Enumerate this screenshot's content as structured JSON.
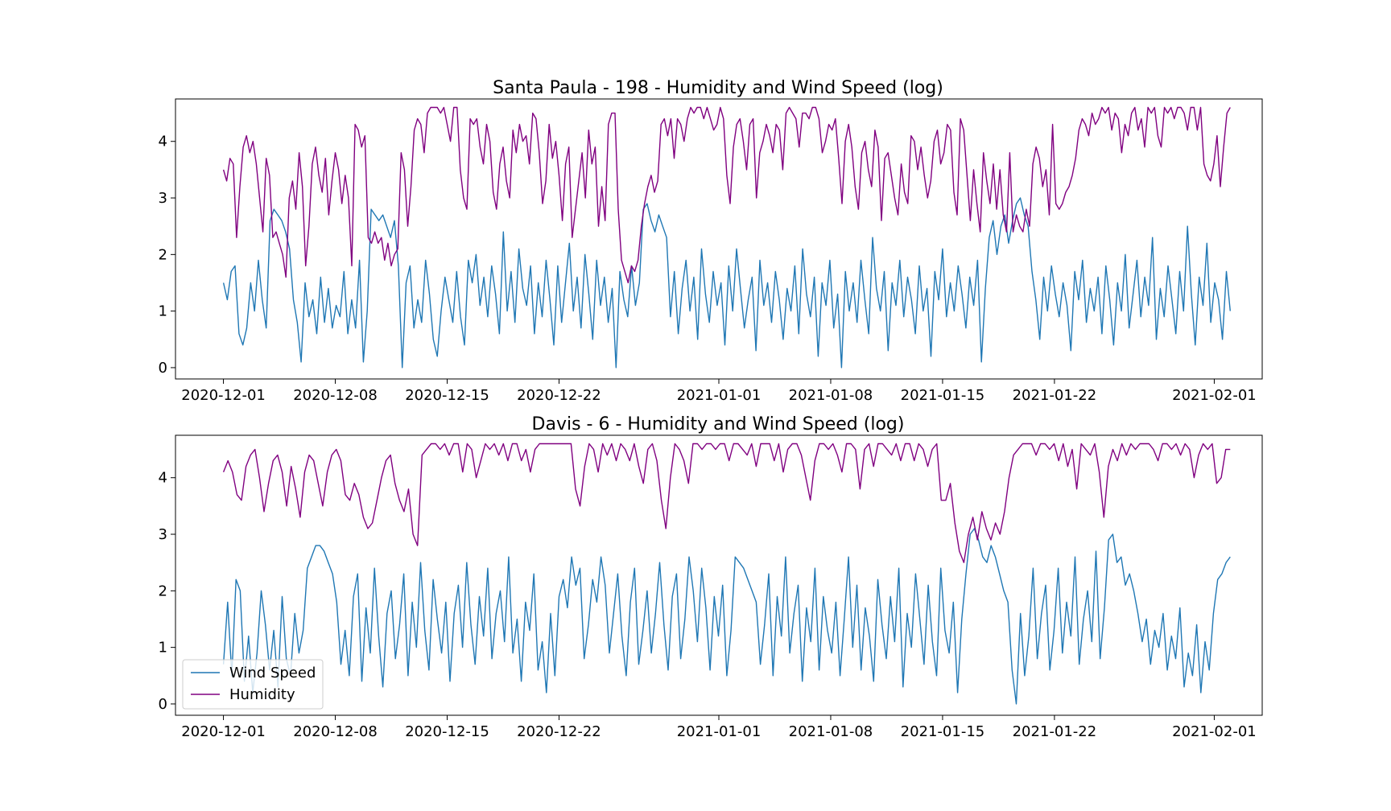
{
  "colors": {
    "wind_speed": "#1f77b4",
    "humidity": "#800080",
    "axes": "#000000",
    "legend_border": "#cccccc"
  },
  "chart_data": [
    {
      "type": "line",
      "title": "Santa Paula - 198 - Humidity and Wind Speed (log)",
      "xlabel": "",
      "ylabel": "",
      "x_start": "2020-12-01",
      "x_end": "2021-02-02",
      "xlim": [
        "2020-11-28",
        "2021-02-04"
      ],
      "ylim": [
        -0.2,
        4.75
      ],
      "x_ticks": [
        "2020-12-01",
        "2020-12-08",
        "2020-12-15",
        "2020-12-22",
        "2021-01-01",
        "2021-01-08",
        "2021-01-15",
        "2021-01-22",
        "2021-02-01"
      ],
      "y_ticks": [
        0,
        1,
        2,
        3,
        4
      ],
      "grid": false,
      "legend": null,
      "series": [
        {
          "name": "Wind Speed",
          "color": "#1f77b4",
          "values": [
            1.5,
            1.2,
            1.7,
            1.8,
            0.6,
            0.4,
            0.7,
            1.5,
            1.0,
            1.9,
            1.2,
            0.7,
            2.6,
            2.8,
            2.7,
            2.6,
            2.4,
            2.1,
            1.2,
            0.8,
            0.1,
            1.5,
            0.9,
            1.2,
            0.6,
            1.6,
            0.8,
            1.4,
            0.7,
            1.1,
            0.9,
            1.7,
            0.6,
            1.2,
            0.7,
            1.9,
            0.1,
            1.0,
            2.8,
            2.7,
            2.6,
            2.7,
            2.5,
            2.3,
            2.6,
            1.8,
            0.0,
            1.5,
            1.8,
            0.7,
            1.2,
            0.8,
            1.9,
            1.3,
            0.5,
            0.2,
            1.0,
            1.6,
            1.2,
            0.8,
            1.7,
            0.9,
            0.4,
            1.9,
            1.5,
            2.0,
            1.1,
            1.6,
            0.9,
            1.8,
            1.3,
            0.6,
            2.4,
            1.0,
            1.7,
            0.8,
            2.1,
            1.4,
            1.1,
            1.8,
            0.6,
            1.5,
            0.9,
            1.9,
            1.2,
            0.4,
            1.8,
            0.8,
            1.5,
            2.2,
            1.0,
            1.6,
            0.7,
            2.0,
            1.3,
            0.5,
            1.9,
            1.1,
            1.6,
            0.8,
            1.4,
            0.0,
            1.7,
            1.2,
            0.9,
            1.8,
            1.1,
            1.5,
            2.8,
            2.9,
            2.6,
            2.4,
            2.7,
            2.5,
            2.3,
            0.9,
            1.7,
            0.6,
            1.4,
            1.9,
            1.0,
            1.6,
            0.5,
            2.1,
            1.3,
            0.8,
            1.7,
            1.1,
            1.5,
            0.4,
            1.8,
            1.0,
            2.1,
            1.4,
            0.7,
            1.2,
            1.6,
            0.3,
            1.9,
            1.1,
            1.5,
            0.8,
            1.7,
            1.2,
            0.5,
            1.4,
            1.0,
            1.8,
            0.6,
            2.1,
            1.3,
            0.9,
            1.6,
            0.2,
            1.5,
            1.1,
            1.9,
            0.7,
            1.3,
            0.0,
            1.7,
            1.0,
            1.5,
            0.8,
            1.9,
            1.2,
            0.6,
            2.3,
            1.4,
            1.0,
            1.7,
            0.3,
            1.5,
            1.1,
            1.9,
            0.9,
            1.6,
            1.2,
            0.6,
            1.8,
            1.0,
            1.4,
            0.2,
            1.7,
            1.2,
            2.1,
            0.9,
            1.5,
            1.0,
            1.8,
            1.3,
            0.7,
            1.6,
            1.1,
            1.9,
            0.1,
            1.4,
            2.3,
            2.6,
            2.0,
            2.5,
            2.7,
            2.2,
            2.6,
            2.9,
            3.0,
            2.7,
            2.5,
            1.7,
            1.2,
            0.5,
            1.6,
            1.0,
            1.8,
            1.3,
            0.9,
            1.5,
            1.1,
            0.3,
            1.7,
            1.2,
            1.9,
            0.8,
            1.4,
            1.0,
            1.6,
            0.6,
            1.8,
            1.2,
            0.4,
            1.5,
            1.0,
            2.0,
            0.7,
            1.3,
            1.9,
            0.9,
            1.6,
            1.1,
            2.3,
            0.5,
            1.4,
            0.9,
            1.8,
            1.2,
            0.6,
            1.7,
            1.0,
            2.5,
            1.3,
            0.4,
            1.6,
            1.1,
            2.2,
            0.8,
            1.5,
            1.2,
            0.5,
            1.7,
            1.0
          ]
        },
        {
          "name": "Humidity",
          "color": "#800080",
          "values": [
            3.5,
            3.3,
            3.7,
            3.6,
            2.3,
            3.2,
            3.9,
            4.1,
            3.8,
            4.0,
            3.6,
            3.0,
            2.4,
            3.7,
            3.4,
            2.3,
            2.4,
            2.2,
            2.0,
            1.6,
            3.0,
            3.3,
            2.8,
            3.8,
            3.2,
            1.8,
            2.5,
            3.6,
            3.9,
            3.4,
            3.1,
            3.7,
            2.7,
            3.3,
            3.8,
            3.5,
            2.9,
            3.4,
            3.0,
            1.8,
            4.3,
            4.2,
            3.9,
            4.1,
            2.3,
            2.2,
            2.4,
            2.2,
            2.3,
            1.9,
            2.2,
            1.8,
            2.0,
            2.1,
            3.8,
            3.5,
            2.5,
            3.2,
            4.2,
            4.4,
            4.3,
            3.8,
            4.5,
            4.6,
            4.6,
            4.6,
            4.5,
            4.6,
            4.3,
            4.0,
            4.6,
            4.6,
            3.5,
            3.0,
            2.8,
            4.4,
            4.3,
            4.4,
            3.9,
            3.6,
            4.3,
            4.0,
            3.1,
            2.8,
            3.6,
            3.9,
            3.3,
            3.0,
            4.2,
            3.8,
            4.3,
            4.0,
            4.1,
            3.6,
            4.5,
            4.4,
            3.8,
            2.9,
            3.3,
            4.3,
            3.7,
            4.0,
            3.4,
            2.6,
            3.6,
            3.9,
            2.3,
            2.8,
            3.3,
            3.8,
            3.0,
            4.2,
            3.6,
            3.9,
            2.5,
            3.2,
            2.6,
            4.3,
            4.5,
            4.5,
            2.8,
            1.9,
            1.7,
            1.5,
            1.8,
            1.7,
            1.9,
            2.5,
            2.9,
            3.2,
            3.4,
            3.1,
            3.3,
            4.3,
            4.4,
            4.1,
            4.4,
            3.7,
            4.4,
            4.3,
            4.0,
            4.4,
            4.6,
            4.5,
            4.6,
            4.6,
            4.4,
            4.6,
            4.4,
            4.2,
            4.3,
            4.6,
            4.4,
            3.4,
            2.9,
            3.9,
            4.3,
            4.4,
            4.0,
            3.5,
            4.3,
            4.4,
            3.0,
            3.8,
            4.0,
            4.3,
            4.1,
            3.8,
            4.3,
            4.2,
            3.5,
            4.5,
            4.6,
            4.5,
            4.4,
            3.9,
            4.5,
            4.5,
            4.4,
            4.6,
            4.6,
            4.4,
            3.8,
            4.0,
            4.3,
            4.2,
            4.4,
            3.7,
            2.9,
            4.0,
            4.3,
            3.9,
            3.2,
            2.8,
            3.8,
            4.0,
            3.5,
            3.2,
            4.2,
            3.9,
            2.6,
            3.7,
            3.8,
            3.4,
            3.0,
            2.7,
            3.6,
            3.1,
            2.9,
            4.1,
            4.0,
            3.5,
            3.9,
            3.4,
            3.0,
            3.3,
            4.0,
            4.2,
            3.6,
            3.8,
            4.3,
            4.2,
            3.1,
            2.7,
            4.4,
            4.2,
            3.4,
            2.6,
            3.5,
            2.9,
            2.4,
            3.8,
            3.3,
            2.9,
            3.6,
            2.8,
            3.5,
            2.7,
            2.4,
            3.8,
            2.4,
            2.7,
            2.5,
            2.4,
            2.8,
            2.5,
            3.6,
            3.9,
            3.7,
            3.2,
            3.5,
            2.7,
            4.3,
            2.9,
            2.8,
            2.9,
            3.1,
            3.2,
            3.4,
            3.7,
            4.2,
            4.4,
            4.3,
            4.1,
            4.5,
            4.3,
            4.4,
            4.6,
            4.5,
            4.6,
            4.2,
            4.5,
            4.4,
            3.8,
            4.3,
            4.1,
            4.5,
            4.6,
            4.2,
            4.4,
            3.9,
            4.6,
            4.5,
            4.6,
            4.1,
            3.9,
            4.6,
            4.5,
            4.6,
            4.4,
            4.6,
            4.6,
            4.5,
            4.2,
            4.6,
            4.6,
            4.2,
            4.6,
            3.6,
            3.4,
            3.3,
            3.6,
            4.1,
            3.2,
            3.9,
            4.5,
            4.6
          ]
        }
      ]
    },
    {
      "type": "line",
      "title": "Davis - 6 - Humidity and Wind Speed (log)",
      "xlabel": "",
      "ylabel": "",
      "x_start": "2020-12-01",
      "x_end": "2021-02-02",
      "xlim": [
        "2020-11-28",
        "2021-02-04"
      ],
      "ylim": [
        -0.2,
        4.75
      ],
      "x_ticks": [
        "2020-12-01",
        "2020-12-08",
        "2020-12-15",
        "2020-12-22",
        "2021-01-01",
        "2021-01-08",
        "2021-01-15",
        "2021-01-22",
        "2021-02-01"
      ],
      "y_ticks": [
        0,
        1,
        2,
        3,
        4
      ],
      "grid": false,
      "legend": "lower-left",
      "series": [
        {
          "name": "Wind Speed",
          "color": "#1f77b4",
          "values": [
            0.7,
            1.8,
            0.5,
            2.2,
            2.0,
            0.4,
            1.2,
            0.2,
            0.9,
            2.0,
            1.4,
            0.6,
            1.3,
            0.3,
            1.9,
            0.8,
            0.5,
            1.6,
            0.9,
            1.3,
            2.4,
            2.6,
            2.8,
            2.8,
            2.7,
            2.5,
            2.3,
            1.8,
            0.7,
            1.3,
            0.5,
            1.9,
            2.3,
            0.4,
            1.7,
            0.9,
            2.4,
            1.2,
            0.3,
            1.6,
            2.0,
            0.8,
            1.4,
            2.3,
            0.5,
            1.8,
            1.0,
            2.5,
            1.3,
            0.6,
            2.2,
            1.5,
            0.9,
            1.8,
            0.4,
            1.6,
            2.1,
            1.0,
            2.5,
            1.4,
            0.7,
            1.9,
            1.2,
            2.4,
            0.8,
            1.6,
            2.0,
            1.1,
            2.6,
            0.9,
            1.5,
            0.4,
            1.8,
            1.3,
            2.3,
            0.6,
            1.1,
            0.2,
            1.6,
            0.5,
            1.9,
            2.2,
            1.7,
            2.6,
            2.1,
            2.4,
            0.8,
            1.4,
            2.2,
            1.8,
            2.6,
            2.1,
            0.9,
            1.6,
            2.3,
            1.2,
            0.5,
            1.8,
            2.4,
            0.7,
            1.3,
            2.0,
            0.9,
            1.6,
            2.5,
            1.4,
            0.6,
            1.9,
            2.3,
            0.8,
            1.5,
            2.6,
            2.0,
            1.1,
            2.4,
            1.7,
            0.6,
            1.9,
            1.2,
            2.1,
            0.5,
            1.3,
            2.6,
            2.5,
            2.4,
            2.2,
            2.0,
            1.8,
            0.7,
            1.4,
            2.3,
            0.5,
            1.9,
            1.2,
            2.6,
            0.9,
            1.6,
            2.1,
            0.4,
            1.7,
            1.1,
            2.4,
            0.6,
            1.9,
            1.3,
            0.9,
            1.8,
            0.5,
            1.5,
            2.6,
            1.0,
            2.1,
            0.6,
            1.7,
            1.2,
            0.4,
            2.2,
            1.4,
            0.8,
            1.9,
            1.1,
            2.4,
            0.3,
            1.6,
            1.0,
            2.3,
            1.5,
            0.7,
            2.1,
            1.1,
            0.5,
            2.4,
            1.3,
            0.9,
            1.8,
            0.2,
            1.5,
            2.3,
            3.0,
            3.1,
            2.9,
            2.6,
            2.5,
            2.8,
            2.6,
            2.3,
            2.0,
            1.8,
            0.6,
            0.0,
            1.6,
            0.5,
            1.2,
            2.4,
            0.8,
            1.6,
            2.1,
            0.6,
            1.3,
            2.4,
            0.9,
            1.8,
            1.2,
            2.6,
            0.7,
            1.5,
            2.0,
            1.1,
            2.7,
            0.8,
            1.7,
            2.9,
            3.0,
            2.5,
            2.6,
            2.1,
            2.3,
            2.0,
            1.6,
            1.1,
            1.5,
            0.7,
            1.3,
            1.0,
            1.6,
            0.6,
            1.2,
            0.8,
            1.7,
            0.3,
            0.9,
            0.5,
            1.4,
            0.2,
            1.1,
            0.6,
            1.6,
            2.2,
            2.3,
            2.5,
            2.6
          ]
        },
        {
          "name": "Humidity",
          "color": "#800080",
          "values": [
            4.1,
            4.3,
            4.1,
            3.7,
            3.6,
            4.2,
            4.4,
            4.5,
            4.0,
            3.4,
            3.9,
            4.3,
            4.4,
            4.1,
            3.5,
            4.2,
            3.8,
            3.3,
            4.1,
            4.4,
            4.3,
            3.9,
            3.5,
            4.1,
            4.4,
            4.5,
            4.3,
            3.7,
            3.6,
            3.9,
            3.7,
            3.3,
            3.1,
            3.2,
            3.6,
            4.0,
            4.3,
            4.4,
            3.9,
            3.6,
            3.4,
            3.8,
            3.0,
            2.8,
            4.4,
            4.5,
            4.6,
            4.6,
            4.5,
            4.6,
            4.4,
            4.6,
            4.6,
            4.1,
            4.6,
            4.5,
            4.0,
            4.3,
            4.6,
            4.5,
            4.6,
            4.4,
            4.6,
            4.3,
            4.6,
            4.6,
            4.3,
            4.5,
            4.1,
            4.5,
            4.6,
            4.6,
            4.6,
            4.6,
            4.6,
            4.6,
            4.6,
            4.6,
            3.8,
            3.5,
            4.2,
            4.6,
            4.5,
            4.1,
            4.6,
            4.4,
            4.6,
            4.3,
            4.6,
            4.5,
            4.3,
            4.6,
            4.2,
            3.9,
            4.5,
            4.6,
            4.3,
            3.6,
            3.1,
            4.0,
            4.6,
            4.5,
            4.3,
            3.9,
            4.6,
            4.6,
            4.5,
            4.6,
            4.6,
            4.5,
            4.6,
            4.6,
            4.3,
            4.6,
            4.6,
            4.5,
            4.4,
            4.6,
            4.2,
            4.6,
            4.6,
            4.6,
            4.3,
            4.6,
            4.1,
            4.5,
            4.6,
            4.6,
            4.4,
            4.0,
            3.6,
            4.3,
            4.6,
            4.6,
            4.5,
            4.6,
            4.4,
            4.1,
            4.6,
            4.6,
            4.5,
            3.8,
            4.5,
            4.6,
            4.2,
            4.6,
            4.6,
            4.5,
            4.4,
            4.6,
            4.3,
            4.6,
            4.6,
            4.3,
            4.6,
            4.5,
            4.2,
            4.5,
            4.6,
            3.6,
            3.6,
            3.9,
            3.2,
            2.7,
            2.5,
            3.0,
            3.3,
            2.9,
            3.4,
            3.1,
            2.9,
            3.2,
            3.0,
            3.4,
            4.0,
            4.4,
            4.5,
            4.6,
            4.6,
            4.6,
            4.4,
            4.6,
            4.6,
            4.5,
            4.6,
            4.3,
            4.6,
            4.2,
            4.5,
            3.8,
            4.6,
            4.5,
            4.4,
            4.6,
            4.1,
            3.3,
            4.2,
            4.5,
            4.3,
            4.6,
            4.4,
            4.6,
            4.5,
            4.6,
            4.6,
            4.6,
            4.5,
            4.3,
            4.6,
            4.6,
            4.5,
            4.6,
            4.4,
            4.6,
            4.5,
            4.0,
            4.4,
            4.6,
            4.5,
            4.6,
            3.9,
            4.0,
            4.5,
            4.5
          ]
        }
      ]
    }
  ]
}
